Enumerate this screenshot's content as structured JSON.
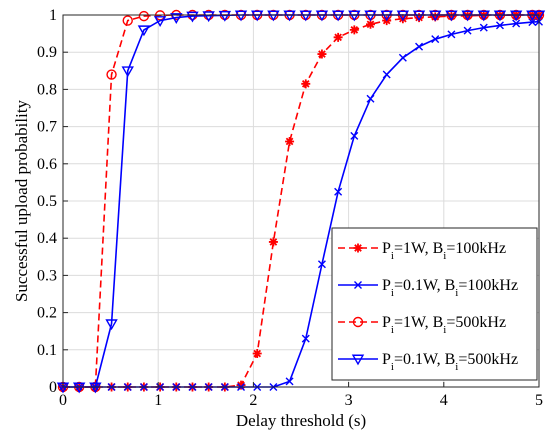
{
  "chart_data": {
    "type": "line",
    "xlabel": "Delay threshold (s)",
    "ylabel": "Successful upload probability",
    "xlim": [
      0,
      5
    ],
    "ylim": [
      0,
      1
    ],
    "x_ticks": [
      "0",
      "1",
      "2",
      "3",
      "4",
      "5"
    ],
    "y_ticks": [
      "0",
      "0.1",
      "0.2",
      "0.3",
      "0.4",
      "0.5",
      "0.6",
      "0.7",
      "0.8",
      "0.9",
      "1"
    ],
    "grid": true,
    "legend_position": "right",
    "series": [
      {
        "name": "P_i=1W, B_i=100kHz",
        "legend": {
          "p": "P",
          "p_sub": "i",
          "p_rest": "=1W, B",
          "b_sub": "i",
          "b_rest": "=100kHz"
        },
        "color": "#ff0000",
        "dash": "dashed",
        "marker": "asterisk",
        "x": [
          0,
          0.17,
          0.34,
          0.51,
          0.68,
          0.85,
          1.02,
          1.19,
          1.36,
          1.53,
          1.7,
          1.87,
          2.04,
          2.21,
          2.38,
          2.55,
          2.72,
          2.89,
          3.06,
          3.23,
          3.4,
          3.57,
          3.74,
          3.91,
          4.08,
          4.25,
          4.42,
          4.59,
          4.76,
          4.93,
          5.0
        ],
        "y": [
          0,
          0,
          0,
          0,
          0,
          0,
          0,
          0,
          0,
          0,
          0,
          0.005,
          0.09,
          0.39,
          0.66,
          0.815,
          0.895,
          0.94,
          0.96,
          0.975,
          0.985,
          0.99,
          0.993,
          0.995,
          0.997,
          0.998,
          0.999,
          0.999,
          1.0,
          1.0,
          1.0
        ]
      },
      {
        "name": "P_i=0.1W, B_i=100kHz",
        "legend": {
          "p": "P",
          "p_sub": "i",
          "p_rest": "=0.1W, B",
          "b_sub": "i",
          "b_rest": "=100kHz"
        },
        "color": "#0000ff",
        "dash": "solid",
        "marker": "x",
        "x": [
          0,
          0.17,
          0.34,
          0.51,
          0.68,
          0.85,
          1.02,
          1.19,
          1.36,
          1.53,
          1.7,
          1.87,
          2.04,
          2.21,
          2.38,
          2.55,
          2.72,
          2.89,
          3.06,
          3.23,
          3.4,
          3.57,
          3.74,
          3.91,
          4.08,
          4.25,
          4.42,
          4.59,
          4.76,
          4.93,
          5.0
        ],
        "y": [
          0,
          0,
          0,
          0,
          0,
          0,
          0,
          0,
          0,
          0,
          0,
          0,
          0,
          0,
          0.015,
          0.13,
          0.33,
          0.525,
          0.675,
          0.775,
          0.84,
          0.885,
          0.915,
          0.935,
          0.948,
          0.958,
          0.966,
          0.972,
          0.977,
          0.981,
          0.982
        ]
      },
      {
        "name": "P_i=1W, B_i=500kHz",
        "legend": {
          "p": "P",
          "p_sub": "i",
          "p_rest": "=1W, B",
          "b_sub": "i",
          "b_rest": "=500kHz"
        },
        "color": "#ff0000",
        "dash": "dashed",
        "marker": "circle",
        "x": [
          0,
          0.17,
          0.34,
          0.51,
          0.68,
          0.85,
          1.02,
          1.19,
          1.36,
          1.53,
          1.7,
          1.87,
          2.04,
          2.21,
          2.38,
          2.55,
          2.72,
          2.89,
          3.06,
          3.23,
          3.4,
          3.57,
          3.74,
          3.91,
          4.08,
          4.25,
          4.42,
          4.59,
          4.76,
          4.93,
          5.0
        ],
        "y": [
          0,
          0,
          0,
          0.84,
          0.985,
          0.997,
          0.999,
          1,
          1,
          1,
          1,
          1,
          1,
          1,
          1,
          1,
          1,
          1,
          1,
          1,
          1,
          1,
          1,
          1,
          1,
          1,
          1,
          1,
          1,
          1,
          1
        ]
      },
      {
        "name": "P_i=0.1W, B_i=500kHz",
        "legend": {
          "p": "P",
          "p_sub": "i",
          "p_rest": "=0.1W, B",
          "b_sub": "i",
          "b_rest": "=500kHz"
        },
        "color": "#0000ff",
        "dash": "solid",
        "marker": "triangle-down",
        "x": [
          0,
          0.17,
          0.34,
          0.51,
          0.68,
          0.85,
          1.02,
          1.19,
          1.36,
          1.53,
          1.7,
          1.87,
          2.04,
          2.21,
          2.38,
          2.55,
          2.72,
          2.89,
          3.06,
          3.23,
          3.4,
          3.57,
          3.74,
          3.91,
          4.08,
          4.25,
          4.42,
          4.59,
          4.76,
          4.93,
          5.0
        ],
        "y": [
          0,
          0,
          0,
          0.17,
          0.85,
          0.96,
          0.985,
          0.993,
          0.997,
          0.998,
          0.999,
          1,
          1,
          1,
          1,
          1,
          1,
          1,
          1,
          1,
          1,
          1,
          1,
          1,
          1,
          1,
          1,
          1,
          1,
          1,
          1
        ]
      }
    ]
  }
}
